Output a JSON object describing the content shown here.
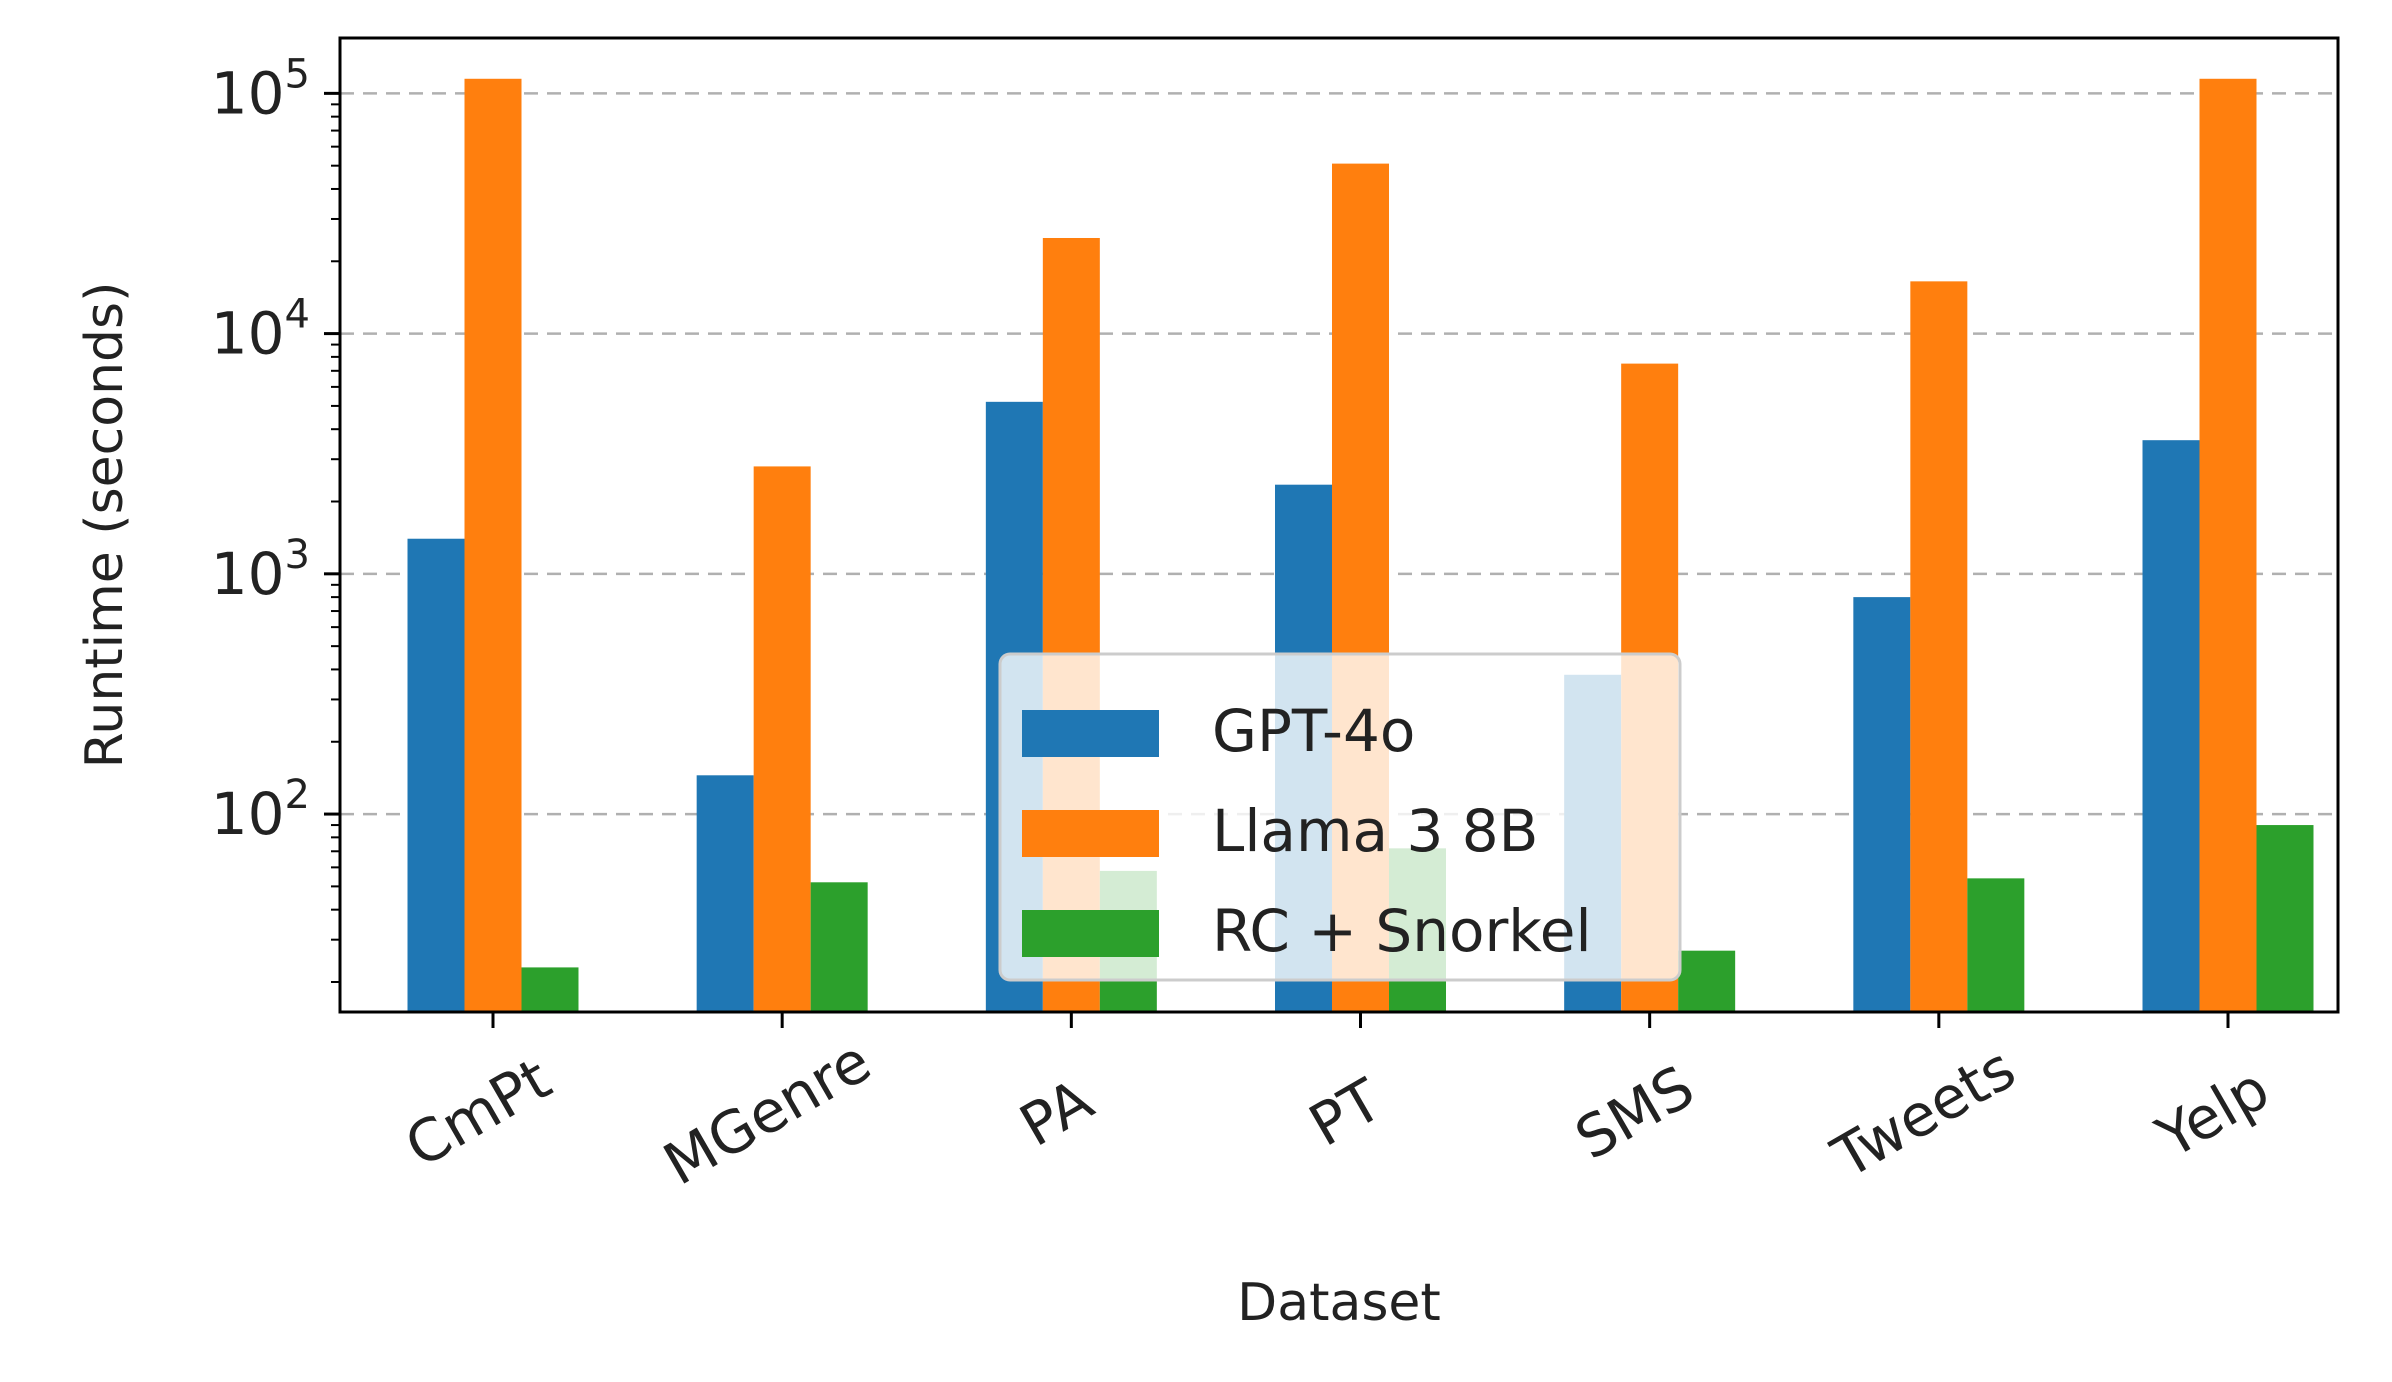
{
  "chart_data": {
    "type": "bar",
    "title": "",
    "xlabel": "Dataset",
    "ylabel": "Runtime (seconds)",
    "yscale": "log",
    "ylim": [
      15,
      170000
    ],
    "grid": "y dashed",
    "legend_position": "center",
    "categories": [
      "CmPt",
      "MGenre",
      "PA",
      "PT",
      "SMS",
      "Tweets",
      "Yelp"
    ],
    "series": [
      {
        "name": "GPT-4o",
        "color": "#1f77b4",
        "values": [
          1400,
          145,
          5200,
          2350,
          380,
          800,
          3600
        ]
      },
      {
        "name": "Llama 3 8B",
        "color": "#ff7f0e",
        "values": [
          115000,
          2800,
          25000,
          51000,
          7500,
          16500,
          115000
        ]
      },
      {
        "name": "RC + Snorkel",
        "color": "#2ca02c",
        "values": [
          23,
          52,
          58,
          72,
          27,
          54,
          90
        ]
      }
    ],
    "y_ticks": [
      {
        "value": 100,
        "base": "10",
        "exp": "2"
      },
      {
        "value": 1000,
        "base": "10",
        "exp": "3"
      },
      {
        "value": 10000,
        "base": "10",
        "exp": "4"
      },
      {
        "value": 100000,
        "base": "10",
        "exp": "5"
      }
    ]
  }
}
